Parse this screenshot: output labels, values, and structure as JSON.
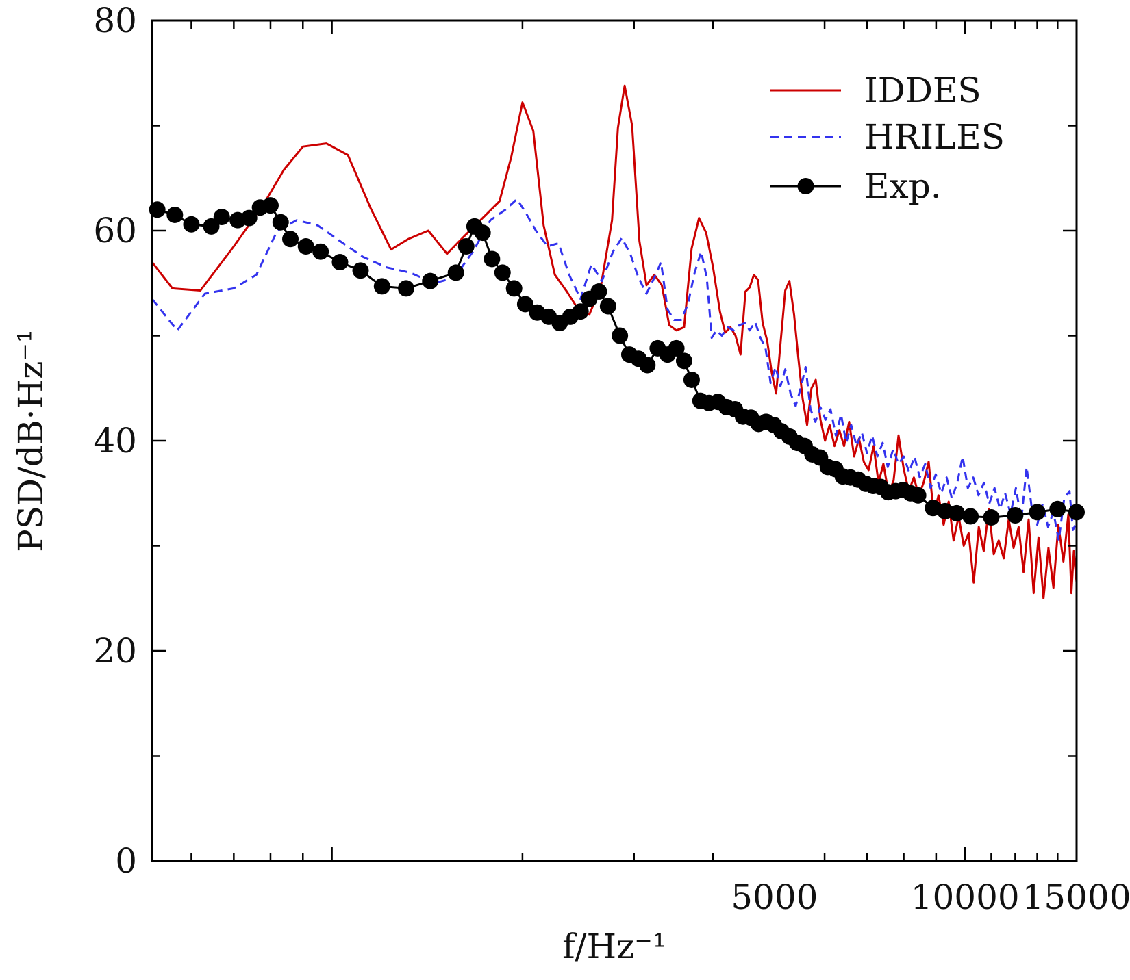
{
  "chart_data": {
    "type": "line",
    "xlabel": "f/Hz⁻¹",
    "ylabel": "PSD/dB·Hz⁻¹",
    "x_scale": "log",
    "xlim": [
      520,
      15000
    ],
    "ylim": [
      0,
      80
    ],
    "x_ticks": [
      5000,
      10000,
      15000
    ],
    "y_ticks": [
      0,
      20,
      40,
      60,
      80
    ],
    "grid": false,
    "legend_position": "top-right",
    "series": [
      {
        "name": "IDDES",
        "color": "#cc0000",
        "style": "solid",
        "points": [
          [
            520,
            57
          ],
          [
            560,
            54.5
          ],
          [
            620,
            54.3
          ],
          [
            700,
            58.5
          ],
          [
            780,
            62.5
          ],
          [
            840,
            65.8
          ],
          [
            900,
            68
          ],
          [
            980,
            68.3
          ],
          [
            1060,
            67.2
          ],
          [
            1150,
            62.2
          ],
          [
            1240,
            58.2
          ],
          [
            1320,
            59.2
          ],
          [
            1420,
            60
          ],
          [
            1520,
            57.8
          ],
          [
            1620,
            59.5
          ],
          [
            1730,
            61.2
          ],
          [
            1840,
            62.8
          ],
          [
            1920,
            67
          ],
          [
            2000,
            72.2
          ],
          [
            2080,
            69.5
          ],
          [
            2160,
            60.5
          ],
          [
            2250,
            55.8
          ],
          [
            2350,
            54.2
          ],
          [
            2450,
            52.5
          ],
          [
            2550,
            52
          ],
          [
            2660,
            54.7
          ],
          [
            2770,
            61
          ],
          [
            2830,
            69.8
          ],
          [
            2900,
            73.8
          ],
          [
            2980,
            70
          ],
          [
            3060,
            59
          ],
          [
            3140,
            54.8
          ],
          [
            3230,
            55.8
          ],
          [
            3320,
            54.8
          ],
          [
            3410,
            51
          ],
          [
            3500,
            50.5
          ],
          [
            3600,
            50.8
          ],
          [
            3700,
            58.3
          ],
          [
            3800,
            61.2
          ],
          [
            3900,
            59.8
          ],
          [
            4000,
            56.5
          ],
          [
            4100,
            52.3
          ],
          [
            4180,
            50.3
          ],
          [
            4260,
            50.8
          ],
          [
            4340,
            50
          ],
          [
            4420,
            48.2
          ],
          [
            4500,
            54.2
          ],
          [
            4570,
            54.6
          ],
          [
            4640,
            55.8
          ],
          [
            4710,
            55.3
          ],
          [
            4790,
            51.2
          ],
          [
            4870,
            49.5
          ],
          [
            4950,
            46.5
          ],
          [
            5030,
            44.5
          ],
          [
            5120,
            49.8
          ],
          [
            5200,
            54.3
          ],
          [
            5280,
            55.2
          ],
          [
            5370,
            52
          ],
          [
            5450,
            48
          ],
          [
            5540,
            44
          ],
          [
            5630,
            41.5
          ],
          [
            5720,
            45
          ],
          [
            5810,
            45.8
          ],
          [
            5910,
            42
          ],
          [
            6010,
            40
          ],
          [
            6110,
            41.5
          ],
          [
            6220,
            39.5
          ],
          [
            6330,
            41
          ],
          [
            6440,
            39.5
          ],
          [
            6560,
            41.8
          ],
          [
            6680,
            38.5
          ],
          [
            6800,
            40.2
          ],
          [
            6920,
            38
          ],
          [
            7040,
            37.2
          ],
          [
            7170,
            39.5
          ],
          [
            7300,
            36
          ],
          [
            7430,
            37.8
          ],
          [
            7570,
            35
          ],
          [
            7710,
            36.2
          ],
          [
            7850,
            40.5
          ],
          [
            8000,
            37.3
          ],
          [
            8150,
            35.2
          ],
          [
            8300,
            36.5
          ],
          [
            8450,
            34.8
          ],
          [
            8600,
            36
          ],
          [
            8760,
            38
          ],
          [
            8920,
            33
          ],
          [
            9080,
            34.8
          ],
          [
            9250,
            32
          ],
          [
            9420,
            34.2
          ],
          [
            9590,
            30.5
          ],
          [
            9770,
            32.8
          ],
          [
            9950,
            30
          ],
          [
            10130,
            31.2
          ],
          [
            10320,
            26.5
          ],
          [
            10510,
            31.8
          ],
          [
            10700,
            29.5
          ],
          [
            10900,
            33.5
          ],
          [
            11100,
            29.2
          ],
          [
            11300,
            30.5
          ],
          [
            11510,
            28.8
          ],
          [
            11720,
            32.5
          ],
          [
            11930,
            29.8
          ],
          [
            12150,
            31.8
          ],
          [
            12370,
            27.5
          ],
          [
            12600,
            32.5
          ],
          [
            12830,
            25.5
          ],
          [
            13060,
            30.8
          ],
          [
            13300,
            25
          ],
          [
            13540,
            29.8
          ],
          [
            13790,
            26
          ],
          [
            14040,
            32
          ],
          [
            14300,
            28.5
          ],
          [
            14560,
            33
          ],
          [
            14720,
            25.5
          ],
          [
            14850,
            29.5
          ],
          [
            15000,
            26.5
          ]
        ]
      },
      {
        "name": "HRILES",
        "color": "#3333ee",
        "style": "dashed",
        "points": [
          [
            520,
            53.5
          ],
          [
            570,
            50.5
          ],
          [
            630,
            54
          ],
          [
            700,
            54.5
          ],
          [
            760,
            55.8
          ],
          [
            820,
            60
          ],
          [
            880,
            61
          ],
          [
            950,
            60.5
          ],
          [
            1030,
            59
          ],
          [
            1120,
            57.5
          ],
          [
            1220,
            56.5
          ],
          [
            1330,
            56
          ],
          [
            1450,
            55
          ],
          [
            1560,
            55.5
          ],
          [
            1670,
            58
          ],
          [
            1780,
            61
          ],
          [
            1880,
            62
          ],
          [
            1960,
            63
          ],
          [
            2020,
            61.8
          ],
          [
            2100,
            60
          ],
          [
            2190,
            58.5
          ],
          [
            2280,
            58.8
          ],
          [
            2370,
            55.8
          ],
          [
            2470,
            53.5
          ],
          [
            2570,
            56.8
          ],
          [
            2670,
            55.2
          ],
          [
            2780,
            58
          ],
          [
            2870,
            59.3
          ],
          [
            2960,
            57.8
          ],
          [
            3050,
            55.5
          ],
          [
            3140,
            54
          ],
          [
            3230,
            55.5
          ],
          [
            3310,
            57
          ],
          [
            3390,
            52.5
          ],
          [
            3470,
            51.5
          ],
          [
            3560,
            51.5
          ],
          [
            3650,
            53
          ],
          [
            3740,
            56
          ],
          [
            3830,
            58
          ],
          [
            3910,
            55.5
          ],
          [
            3980,
            49.8
          ],
          [
            4050,
            50.5
          ],
          [
            4130,
            50
          ],
          [
            4220,
            50.8
          ],
          [
            4310,
            50.5
          ],
          [
            4400,
            51
          ],
          [
            4490,
            51.2
          ],
          [
            4570,
            50.5
          ],
          [
            4660,
            51.3
          ],
          [
            4750,
            49.8
          ],
          [
            4840,
            48.8
          ],
          [
            4930,
            45.5
          ],
          [
            5020,
            47
          ],
          [
            5110,
            45.2
          ],
          [
            5200,
            46.8
          ],
          [
            5300,
            44.5
          ],
          [
            5400,
            43.3
          ],
          [
            5500,
            45
          ],
          [
            5600,
            47
          ],
          [
            5700,
            43
          ],
          [
            5800,
            41.8
          ],
          [
            5910,
            43.2
          ],
          [
            6020,
            42
          ],
          [
            6130,
            43
          ],
          [
            6250,
            40.5
          ],
          [
            6370,
            42.5
          ],
          [
            6490,
            39.8
          ],
          [
            6610,
            41.5
          ],
          [
            6740,
            39.5
          ],
          [
            6870,
            40.8
          ],
          [
            7000,
            38.8
          ],
          [
            7130,
            40.5
          ],
          [
            7270,
            38.5
          ],
          [
            7410,
            39.8
          ],
          [
            7550,
            37.5
          ],
          [
            7700,
            39.2
          ],
          [
            7850,
            37.8
          ],
          [
            8000,
            38.5
          ],
          [
            8160,
            37
          ],
          [
            8320,
            38.5
          ],
          [
            8480,
            36.5
          ],
          [
            8650,
            37.8
          ],
          [
            8820,
            35.5
          ],
          [
            8990,
            36.8
          ],
          [
            9170,
            35
          ],
          [
            9350,
            36.5
          ],
          [
            9530,
            34.5
          ],
          [
            9720,
            36
          ],
          [
            9910,
            38.5
          ],
          [
            10100,
            35.5
          ],
          [
            10300,
            36.5
          ],
          [
            10500,
            34.8
          ],
          [
            10710,
            36
          ],
          [
            10920,
            34
          ],
          [
            11130,
            35.5
          ],
          [
            11350,
            33.5
          ],
          [
            11570,
            35
          ],
          [
            11800,
            33
          ],
          [
            12030,
            35.5
          ],
          [
            12270,
            32.5
          ],
          [
            12510,
            37.5
          ],
          [
            12750,
            33.5
          ],
          [
            13000,
            32
          ],
          [
            13260,
            34
          ],
          [
            13520,
            31.8
          ],
          [
            13790,
            33.2
          ],
          [
            14060,
            30.5
          ],
          [
            14340,
            34.5
          ],
          [
            14620,
            35.2
          ],
          [
            14800,
            31.5
          ],
          [
            15000,
            32.2
          ]
        ]
      },
      {
        "name": "Exp.",
        "color": "#000000",
        "style": "solid-markers",
        "points": [
          [
            530,
            62
          ],
          [
            565,
            61.5
          ],
          [
            600,
            60.6
          ],
          [
            645,
            60.4
          ],
          [
            670,
            61.3
          ],
          [
            710,
            61
          ],
          [
            740,
            61.2
          ],
          [
            770,
            62.2
          ],
          [
            800,
            62.4
          ],
          [
            830,
            60.8
          ],
          [
            860,
            59.2
          ],
          [
            910,
            58.5
          ],
          [
            960,
            58
          ],
          [
            1030,
            57
          ],
          [
            1110,
            56.2
          ],
          [
            1200,
            54.7
          ],
          [
            1310,
            54.5
          ],
          [
            1430,
            55.2
          ],
          [
            1570,
            56
          ],
          [
            1630,
            58.5
          ],
          [
            1680,
            60.4
          ],
          [
            1730,
            59.8
          ],
          [
            1790,
            57.3
          ],
          [
            1860,
            56
          ],
          [
            1940,
            54.5
          ],
          [
            2020,
            53
          ],
          [
            2110,
            52.2
          ],
          [
            2200,
            51.8
          ],
          [
            2290,
            51.2
          ],
          [
            2380,
            51.8
          ],
          [
            2470,
            52.3
          ],
          [
            2550,
            53.5
          ],
          [
            2640,
            54.2
          ],
          [
            2730,
            52.8
          ],
          [
            2850,
            50
          ],
          [
            2950,
            48.2
          ],
          [
            3050,
            47.8
          ],
          [
            3150,
            47.2
          ],
          [
            3270,
            48.8
          ],
          [
            3390,
            48.2
          ],
          [
            3500,
            48.8
          ],
          [
            3600,
            47.6
          ],
          [
            3700,
            45.8
          ],
          [
            3820,
            43.8
          ],
          [
            3940,
            43.6
          ],
          [
            4070,
            43.7
          ],
          [
            4200,
            43.2
          ],
          [
            4330,
            43
          ],
          [
            4460,
            42.3
          ],
          [
            4590,
            42.2
          ],
          [
            4720,
            41.6
          ],
          [
            4850,
            41.8
          ],
          [
            4990,
            41.5
          ],
          [
            5130,
            40.9
          ],
          [
            5280,
            40.4
          ],
          [
            5430,
            39.8
          ],
          [
            5580,
            39.5
          ],
          [
            5740,
            38.7
          ],
          [
            5900,
            38.4
          ],
          [
            6070,
            37.5
          ],
          [
            6240,
            37.3
          ],
          [
            6410,
            36.6
          ],
          [
            6590,
            36.5
          ],
          [
            6780,
            36.3
          ],
          [
            6970,
            35.9
          ],
          [
            7160,
            35.7
          ],
          [
            7360,
            35.6
          ],
          [
            7560,
            35.1
          ],
          [
            7770,
            35.2
          ],
          [
            7980,
            35.3
          ],
          [
            8200,
            35
          ],
          [
            8430,
            34.8
          ],
          [
            8900,
            33.6
          ],
          [
            9300,
            33.3
          ],
          [
            9700,
            33.1
          ],
          [
            10200,
            32.8
          ],
          [
            11000,
            32.7
          ],
          [
            12000,
            32.9
          ],
          [
            13000,
            33.2
          ],
          [
            14000,
            33.5
          ],
          [
            15000,
            33.2
          ]
        ]
      }
    ]
  }
}
